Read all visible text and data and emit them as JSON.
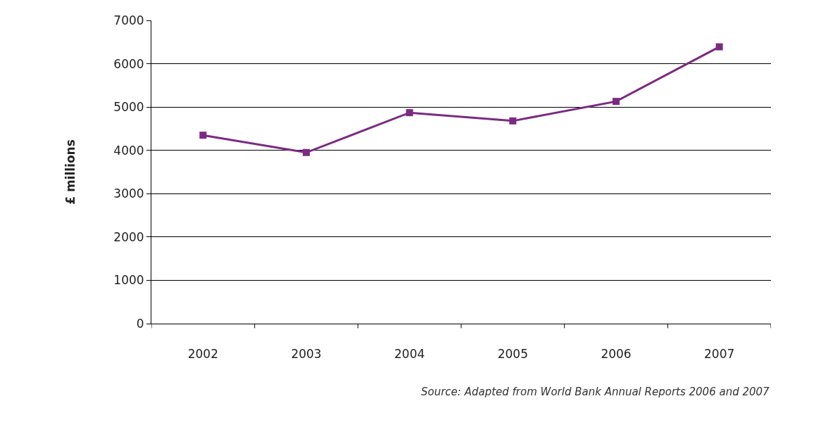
{
  "chart_data": {
    "type": "line",
    "ylabel": "£ millions",
    "categories": [
      "2002",
      "2003",
      "2004",
      "2005",
      "2006",
      "2007"
    ],
    "series": [
      {
        "color": "#7b2a82",
        "values": [
          4350,
          3950,
          4870,
          4680,
          5130,
          6390
        ]
      }
    ],
    "ylim": [
      0,
      7000
    ],
    "yticks": [
      0,
      1000,
      2000,
      3000,
      4000,
      5000,
      6000,
      7000
    ],
    "grid": "y",
    "marker": "square",
    "line_style": "solid",
    "annotations": [
      "Source: Adapted from World Bank Annual Reports 2006 and 2007"
    ]
  }
}
